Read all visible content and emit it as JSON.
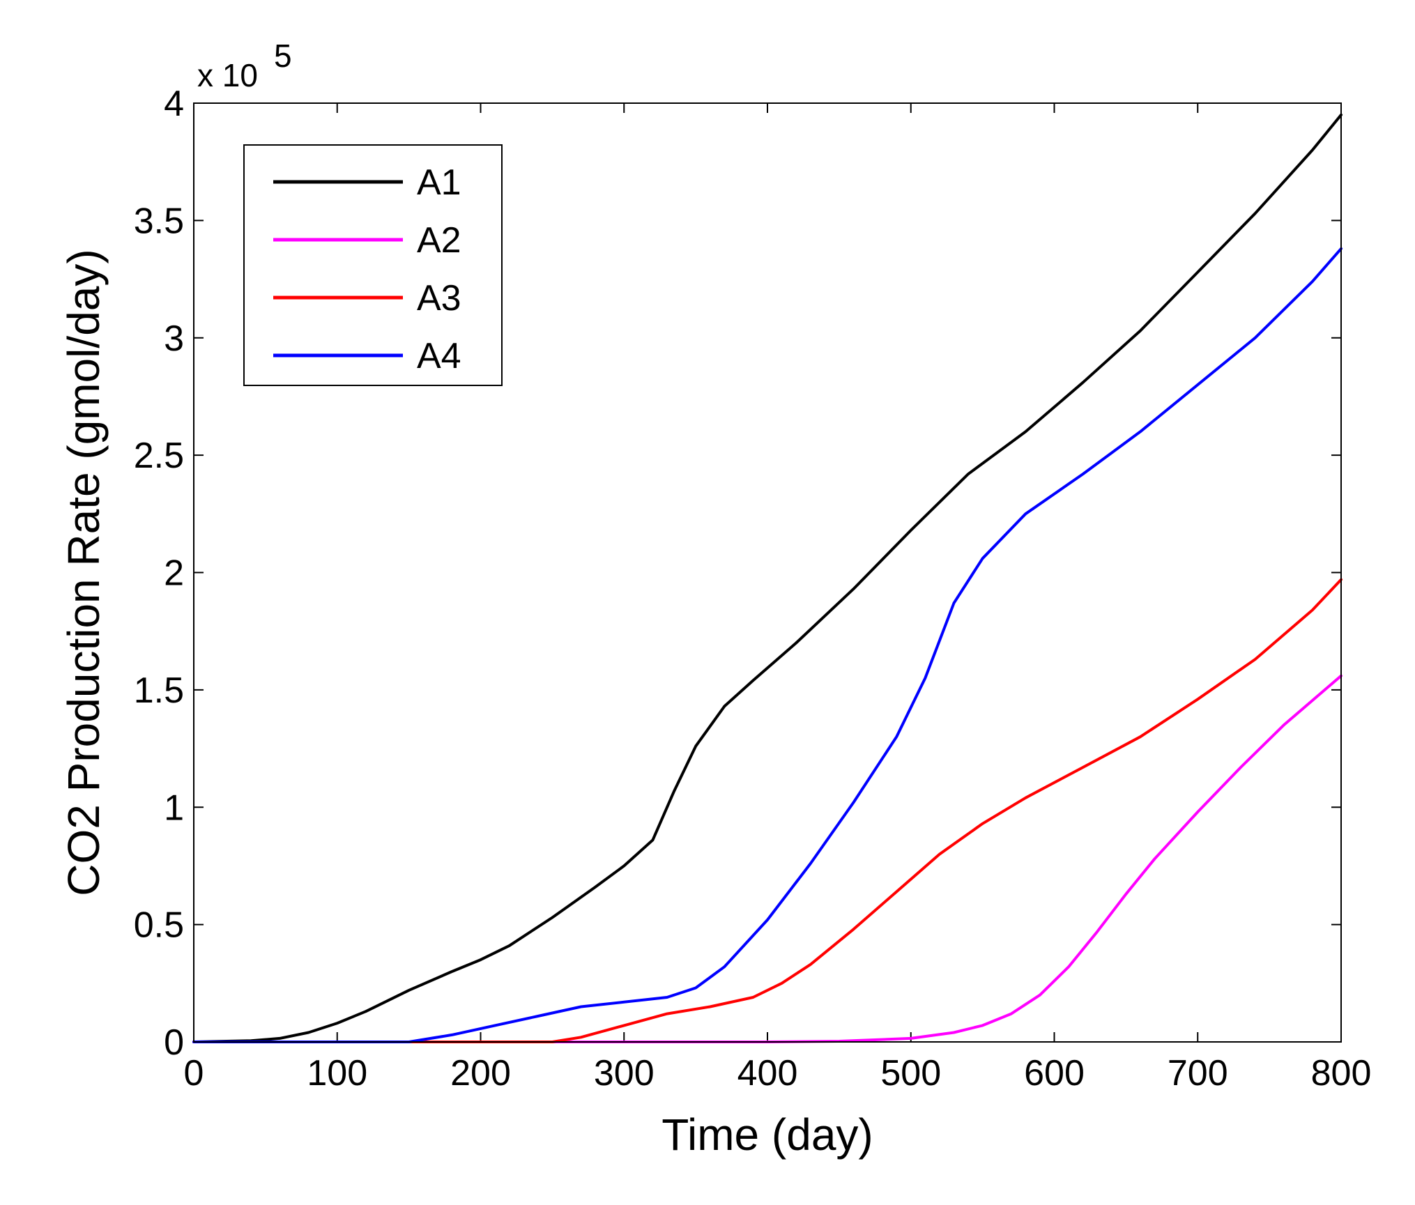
{
  "chart_data": {
    "type": "line",
    "title": "",
    "xlabel": "Time (day)",
    "ylabel": "CO2 Production Rate (gmol/day)",
    "y_exponent_base": "x 10",
    "y_exponent_power": "5",
    "xlim": [
      0,
      800
    ],
    "ylim": [
      0,
      4
    ],
    "x_ticks": [
      0,
      100,
      200,
      300,
      400,
      500,
      600,
      700,
      800
    ],
    "x_tick_labels": [
      "0",
      "100",
      "200",
      "300",
      "400",
      "500",
      "600",
      "700",
      "800"
    ],
    "y_ticks": [
      0,
      0.5,
      1,
      1.5,
      2,
      2.5,
      3,
      3.5,
      4
    ],
    "y_tick_labels": [
      "0",
      "0.5",
      "1",
      "1.5",
      "2",
      "2.5",
      "3",
      "3.5",
      "4"
    ],
    "grid": false,
    "legend_position": "top-left",
    "series": [
      {
        "name": "A1",
        "color": "#000000",
        "x": [
          0,
          40,
          60,
          80,
          100,
          120,
          150,
          180,
          200,
          220,
          250,
          280,
          300,
          320,
          335,
          350,
          370,
          390,
          420,
          460,
          500,
          540,
          580,
          620,
          660,
          700,
          740,
          780,
          800
        ],
        "y": [
          0,
          0.005,
          0.015,
          0.04,
          0.08,
          0.13,
          0.22,
          0.3,
          0.35,
          0.41,
          0.53,
          0.66,
          0.75,
          0.86,
          1.07,
          1.26,
          1.43,
          1.54,
          1.7,
          1.93,
          2.18,
          2.42,
          2.6,
          2.81,
          3.03,
          3.28,
          3.53,
          3.8,
          3.95
        ]
      },
      {
        "name": "A2",
        "color": "#ff00ff",
        "x": [
          0,
          400,
          450,
          500,
          530,
          550,
          570,
          590,
          610,
          630,
          650,
          670,
          700,
          730,
          760,
          800
        ],
        "y": [
          0,
          0,
          0.003,
          0.015,
          0.04,
          0.07,
          0.12,
          0.2,
          0.32,
          0.47,
          0.63,
          0.78,
          0.98,
          1.17,
          1.35,
          1.56
        ]
      },
      {
        "name": "A3",
        "color": "#ff0000",
        "x": [
          0,
          250,
          270,
          300,
          330,
          360,
          390,
          410,
          430,
          460,
          490,
          520,
          550,
          580,
          620,
          660,
          700,
          740,
          780,
          800
        ],
        "y": [
          0,
          0,
          0.02,
          0.07,
          0.12,
          0.15,
          0.19,
          0.25,
          0.33,
          0.48,
          0.64,
          0.8,
          0.93,
          1.04,
          1.17,
          1.3,
          1.46,
          1.63,
          1.84,
          1.97
        ]
      },
      {
        "name": "A4",
        "color": "#0000ff",
        "x": [
          0,
          150,
          180,
          210,
          240,
          270,
          300,
          330,
          350,
          370,
          400,
          430,
          460,
          490,
          510,
          530,
          550,
          580,
          620,
          660,
          700,
          740,
          780,
          800
        ],
        "y": [
          0,
          0,
          0.03,
          0.07,
          0.11,
          0.15,
          0.17,
          0.19,
          0.23,
          0.32,
          0.52,
          0.76,
          1.02,
          1.3,
          1.55,
          1.87,
          2.06,
          2.25,
          2.42,
          2.6,
          2.8,
          3.0,
          3.24,
          3.38
        ]
      }
    ]
  }
}
